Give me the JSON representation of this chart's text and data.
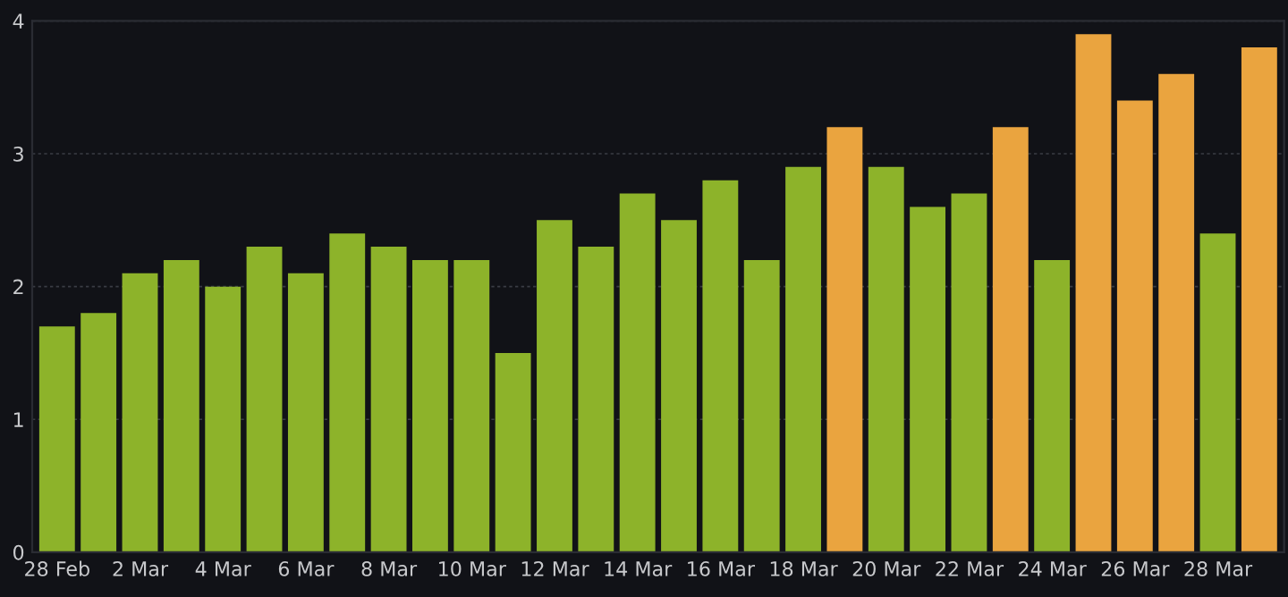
{
  "chart_data": {
    "type": "bar",
    "categories": [
      "28 Feb",
      null,
      "2 Mar",
      null,
      "4 Mar",
      null,
      "6 Mar",
      null,
      "8 Mar",
      null,
      "10 Mar",
      null,
      "12 Mar",
      null,
      "14 Mar",
      null,
      "16 Mar",
      null,
      "18 Mar",
      null,
      "20 Mar",
      null,
      "22 Mar",
      null,
      "24 Mar",
      null,
      "26 Mar",
      null,
      "28 Mar",
      null
    ],
    "values": [
      1.7,
      1.8,
      2.1,
      2.2,
      2.0,
      2.3,
      2.1,
      2.4,
      2.3,
      2.2,
      2.2,
      1.5,
      2.5,
      2.3,
      2.7,
      2.5,
      2.8,
      2.2,
      2.9,
      3.2,
      2.9,
      2.6,
      2.7,
      3.2,
      2.2,
      3.9,
      3.4,
      3.6,
      2.4,
      3.8
    ],
    "colors": [
      "#8db32a",
      "#8db32a",
      "#8db32a",
      "#8db32a",
      "#8db32a",
      "#8db32a",
      "#8db32a",
      "#8db32a",
      "#8db32a",
      "#8db32a",
      "#8db32a",
      "#8db32a",
      "#8db32a",
      "#8db32a",
      "#8db32a",
      "#8db32a",
      "#8db32a",
      "#8db32a",
      "#8db32a",
      "#eaa43f",
      "#8db32a",
      "#8db32a",
      "#8db32a",
      "#eaa43f",
      "#8db32a",
      "#eaa43f",
      "#eaa43f",
      "#eaa43f",
      "#8db32a",
      "#eaa43f"
    ],
    "ylim": [
      0,
      4
    ],
    "yticks": [
      0,
      1,
      2,
      3,
      4
    ],
    "grid": "y"
  }
}
